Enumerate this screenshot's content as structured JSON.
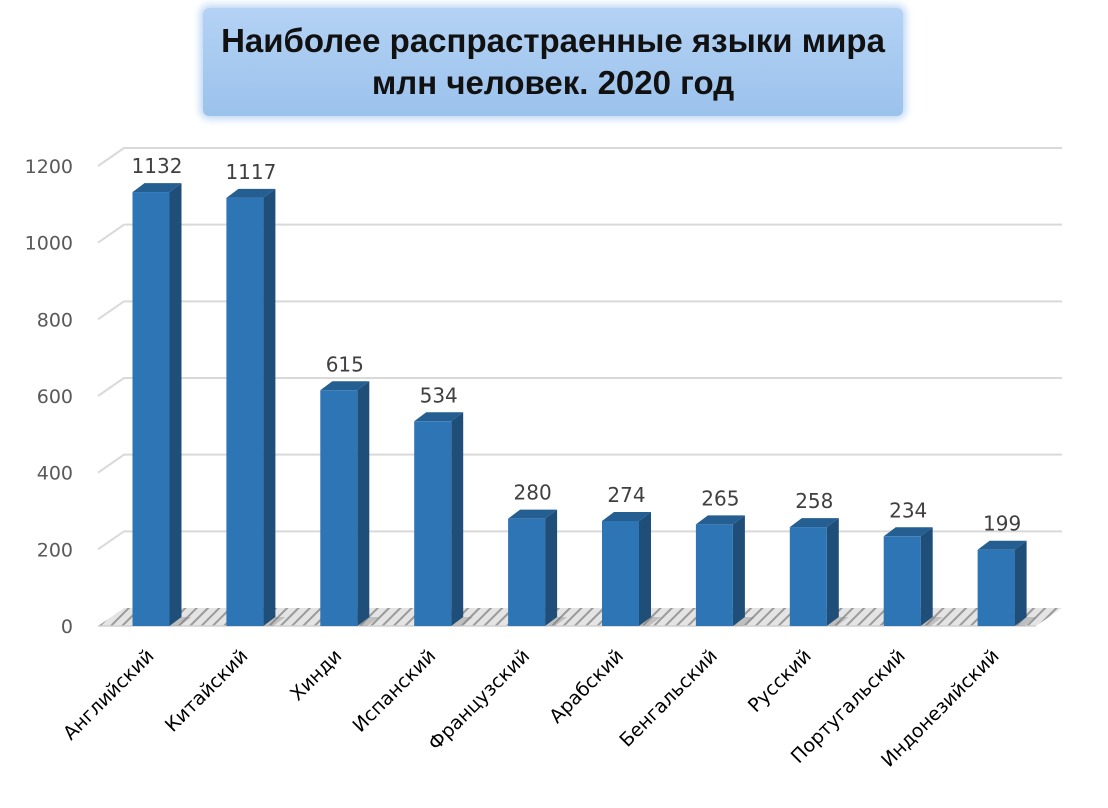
{
  "chart_data": {
    "type": "bar",
    "title_lines": [
      "Наиболее распрастраенные языки мира",
      "млн человек. 2020 год"
    ],
    "categories": [
      "Английский",
      "Китайский",
      "Хинди",
      "Испанский",
      "Французский",
      "Арабский",
      "Бенгальский",
      "Русский",
      "Португальский",
      "Индонезийский"
    ],
    "values": [
      1132,
      1117,
      615,
      534,
      280,
      274,
      265,
      258,
      234,
      199
    ],
    "ylim": [
      0,
      1200
    ],
    "yticks": [
      0,
      200,
      400,
      600,
      800,
      1000,
      1200
    ],
    "grid": true,
    "legend": "none",
    "colors": {
      "bar_front": "#2e75b6",
      "bar_side": "#1f4e79",
      "bar_top": "#255e91"
    }
  }
}
